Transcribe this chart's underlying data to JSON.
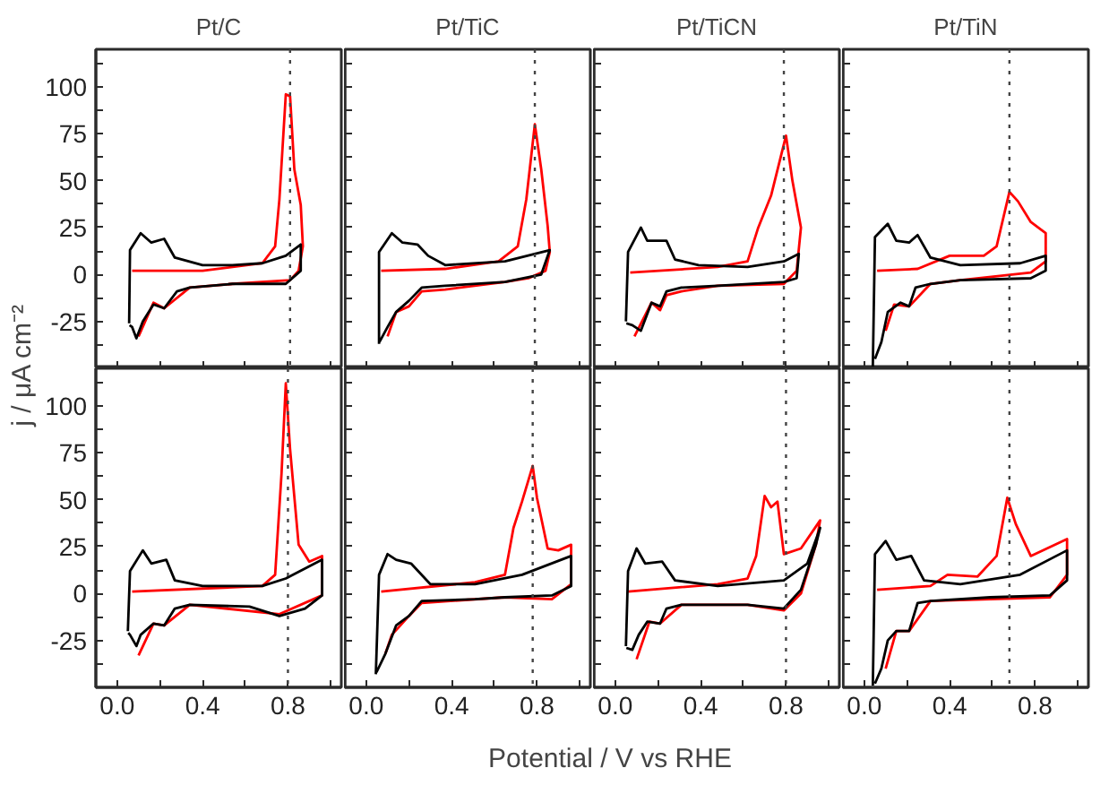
{
  "chart_data": [
    {
      "type": "line",
      "title": "Pt/C",
      "ylabel": "j / μA cm⁻²",
      "tick_labels": "y",
      "xlim": [
        -0.1,
        1.05
      ],
      "ylim": [
        -50,
        120
      ],
      "xticks": [
        {
          "value": 0,
          "label": null
        },
        {
          "value": 0.2,
          "label": null
        },
        {
          "value": 0.4,
          "label": null
        },
        {
          "value": 0.6,
          "label": null
        },
        {
          "value": 0.8,
          "label": null
        },
        {
          "value": 1.0,
          "label": null
        }
      ],
      "yticks": [
        {
          "value": -37.5,
          "label": null
        },
        -25,
        {
          "value": -12.5,
          "label": null
        },
        0,
        {
          "value": 12.5,
          "label": null
        },
        25,
        {
          "value": 37.5,
          "label": null
        },
        50,
        {
          "value": 62.5,
          "label": null
        },
        75,
        {
          "value": 87.5,
          "label": null
        },
        100,
        {
          "value": 112.5,
          "label": null
        }
      ],
      "ref_lines": [
        {
          "axis": "x",
          "value": 0.81,
          "line_style": "dotted",
          "color": "#444444"
        }
      ],
      "series": [
        {
          "color": "#ff0000",
          "x": [
            0.07,
            0.4,
            0.68,
            0.74,
            0.76,
            0.79,
            0.81,
            0.83,
            0.86,
            0.87,
            0.85,
            0.81,
            0.54,
            0.34,
            0.22,
            0.17,
            0.1
          ],
          "values": [
            2,
            2,
            6,
            15,
            40,
            96,
            95,
            56,
            37,
            15,
            2,
            -3,
            -5,
            -7,
            -18,
            -15,
            -33
          ]
        },
        {
          "color": "#000000",
          "x": [
            0.056,
            0.06,
            0.11,
            0.16,
            0.22,
            0.27,
            0.4,
            0.54,
            0.68,
            0.79,
            0.86,
            0.86,
            0.79,
            0.54,
            0.34,
            0.28,
            0.22,
            0.17,
            0.12,
            0.09,
            0.07,
            0.058
          ],
          "values": [
            -26,
            13,
            22,
            17,
            19,
            9,
            5,
            5,
            6,
            10,
            16,
            2,
            -5,
            -5,
            -7,
            -9,
            -18,
            -16,
            -25,
            -34,
            -28,
            -27
          ]
        }
      ]
    },
    {
      "type": "line",
      "title": "Pt/TiC",
      "tick_labels": false,
      "xlim": [
        -0.1,
        1.05
      ],
      "ylim": [
        -50,
        120
      ],
      "xticks": [
        {
          "value": 0,
          "label": null
        },
        {
          "value": 0.2,
          "label": null
        },
        {
          "value": 0.4,
          "label": null
        },
        {
          "value": 0.6,
          "label": null
        },
        {
          "value": 0.8,
          "label": null
        },
        {
          "value": 1.0,
          "label": null
        }
      ],
      "yticks": [
        {
          "value": -37.5,
          "label": null
        },
        {
          "value": -25,
          "label": null
        },
        {
          "value": -12.5,
          "label": null
        },
        {
          "value": 0,
          "label": null
        },
        {
          "value": 12.5,
          "label": null
        },
        {
          "value": 25,
          "label": null
        },
        {
          "value": 37.5,
          "label": null
        },
        {
          "value": 50,
          "label": null
        },
        {
          "value": 62.5,
          "label": null
        },
        {
          "value": 75,
          "label": null
        },
        {
          "value": 87.5,
          "label": null
        },
        {
          "value": 100,
          "label": null
        },
        {
          "value": 112.5,
          "label": null
        }
      ],
      "ref_lines": [
        {
          "axis": "x",
          "value": 0.79,
          "line_style": "dotted",
          "color": "#444444"
        }
      ],
      "series": [
        {
          "color": "#ff0000",
          "x": [
            0.07,
            0.37,
            0.62,
            0.71,
            0.75,
            0.79,
            0.82,
            0.85,
            0.86,
            0.84,
            0.76,
            0.65,
            0.37,
            0.26,
            0.2,
            0.14,
            0.1
          ],
          "values": [
            2,
            3,
            7,
            15,
            40,
            80,
            56,
            26,
            12,
            2,
            -2,
            -4,
            -8,
            -9,
            -17,
            -20,
            -33
          ]
        },
        {
          "color": "#000000",
          "x": [
            0.06,
            0.06,
            0.12,
            0.17,
            0.24,
            0.29,
            0.37,
            0.65,
            0.86,
            0.82,
            0.65,
            0.37,
            0.26,
            0.2,
            0.14,
            0.1,
            0.062
          ],
          "values": [
            -37,
            12,
            22,
            17,
            16,
            10,
            5,
            7,
            13,
            0,
            -4,
            -6,
            -7,
            -14,
            -20,
            -28,
            -36
          ]
        }
      ]
    },
    {
      "type": "line",
      "title": "Pt/TiCN",
      "tick_labels": false,
      "xlim": [
        -0.1,
        1.05
      ],
      "ylim": [
        -50,
        120
      ],
      "xticks": [
        {
          "value": 0,
          "label": null
        },
        {
          "value": 0.2,
          "label": null
        },
        {
          "value": 0.4,
          "label": null
        },
        {
          "value": 0.6,
          "label": null
        },
        {
          "value": 0.8,
          "label": null
        },
        {
          "value": 1.0,
          "label": null
        }
      ],
      "yticks": [
        {
          "value": -37.5,
          "label": null
        },
        {
          "value": -25,
          "label": null
        },
        {
          "value": -12.5,
          "label": null
        },
        {
          "value": 0,
          "label": null
        },
        {
          "value": 12.5,
          "label": null
        },
        {
          "value": 25,
          "label": null
        },
        {
          "value": 37.5,
          "label": null
        },
        {
          "value": 50,
          "label": null
        },
        {
          "value": 62.5,
          "label": null
        },
        {
          "value": 75,
          "label": null
        },
        {
          "value": 87.5,
          "label": null
        },
        {
          "value": 100,
          "label": null
        },
        {
          "value": 112.5,
          "label": null
        }
      ],
      "ref_lines": [
        {
          "axis": "x",
          "value": 0.79,
          "line_style": "dotted",
          "color": "#444444"
        }
      ],
      "series": [
        {
          "color": "#ff0000",
          "x": [
            0.07,
            0.48,
            0.62,
            0.67,
            0.73,
            0.8,
            0.83,
            0.87,
            0.85,
            0.79,
            0.48,
            0.31,
            0.24,
            0.21,
            0.17,
            0.09
          ],
          "values": [
            1,
            4,
            7,
            25,
            42,
            74,
            50,
            25,
            2,
            -5,
            -6,
            -9,
            -11,
            -19,
            -15,
            -33
          ]
        },
        {
          "color": "#000000",
          "x": [
            0.05,
            0.06,
            0.12,
            0.15,
            0.24,
            0.28,
            0.39,
            0.62,
            0.79,
            0.86,
            0.85,
            0.79,
            0.48,
            0.31,
            0.24,
            0.21,
            0.17,
            0.12,
            0.08,
            0.052
          ],
          "values": [
            -25,
            12,
            25,
            18,
            18,
            8,
            5,
            4,
            7,
            11,
            -2,
            -4,
            -6,
            -7,
            -9,
            -17,
            -15,
            -30,
            -27,
            -26
          ]
        }
      ]
    },
    {
      "type": "line",
      "title": "Pt/TiN",
      "tick_labels": false,
      "xlim": [
        -0.1,
        1.05
      ],
      "ylim": [
        -50,
        120
      ],
      "xticks": [
        {
          "value": 0,
          "label": null
        },
        {
          "value": 0.2,
          "label": null
        },
        {
          "value": 0.4,
          "label": null
        },
        {
          "value": 0.6,
          "label": null
        },
        {
          "value": 0.8,
          "label": null
        },
        {
          "value": 1.0,
          "label": null
        }
      ],
      "yticks": [
        {
          "value": -37.5,
          "label": null
        },
        {
          "value": -25,
          "label": null
        },
        {
          "value": -12.5,
          "label": null
        },
        {
          "value": 0,
          "label": null
        },
        {
          "value": 12.5,
          "label": null
        },
        {
          "value": 25,
          "label": null
        },
        {
          "value": 37.5,
          "label": null
        },
        {
          "value": 50,
          "label": null
        },
        {
          "value": 62.5,
          "label": null
        },
        {
          "value": 75,
          "label": null
        },
        {
          "value": 87.5,
          "label": null
        },
        {
          "value": 100,
          "label": null
        },
        {
          "value": 112.5,
          "label": null
        }
      ],
      "ref_lines": [
        {
          "axis": "x",
          "value": 0.68,
          "line_style": "dotted",
          "color": "#444444"
        }
      ],
      "series": [
        {
          "color": "#ff0000",
          "x": [
            0.06,
            0.25,
            0.4,
            0.56,
            0.62,
            0.68,
            0.72,
            0.78,
            0.85,
            0.85,
            0.78,
            0.45,
            0.31,
            0.21,
            0.14,
            0.1
          ],
          "values": [
            2,
            3,
            10,
            10,
            15,
            44,
            39,
            28,
            22,
            7,
            1,
            -3,
            -5,
            -17,
            -16,
            -30
          ]
        },
        {
          "color": "#000000",
          "x": [
            0.04,
            0.05,
            0.11,
            0.15,
            0.21,
            0.25,
            0.31,
            0.45,
            0.73,
            0.85,
            0.85,
            0.78,
            0.45,
            0.31,
            0.24,
            0.21,
            0.17,
            0.11,
            0.08,
            0.05
          ],
          "values": [
            -49,
            20,
            27,
            18,
            17,
            21,
            9,
            5,
            6,
            10,
            2,
            -2,
            -3,
            -5,
            -7,
            -17,
            -15,
            -20,
            -36,
            -45
          ]
        }
      ]
    },
    {
      "type": "line",
      "xlabel": "Potential / V vs RHE",
      "xlim": [
        -0.1,
        1.05
      ],
      "ylim": [
        -50,
        120
      ],
      "xticks": [
        {
          "value": 0,
          "label": "0.0"
        },
        {
          "value": 0.2,
          "label": null
        },
        {
          "value": 0.4,
          "label": "0.4"
        },
        {
          "value": 0.6,
          "label": null
        },
        {
          "value": 0.8,
          "label": "0.8"
        },
        {
          "value": 1.0,
          "label": null
        }
      ],
      "yticks": [
        {
          "value": -37.5,
          "label": null
        },
        -25,
        {
          "value": -12.5,
          "label": null
        },
        0,
        {
          "value": 12.5,
          "label": null
        },
        25,
        {
          "value": 37.5,
          "label": null
        },
        50,
        {
          "value": 62.5,
          "label": null
        },
        75,
        {
          "value": 87.5,
          "label": null
        },
        100,
        {
          "value": 112.5,
          "label": null
        }
      ],
      "ref_lines": [
        {
          "axis": "x",
          "value": 0.8,
          "line_style": "dotted",
          "color": "#444444"
        }
      ],
      "series": [
        {
          "color": "#ff0000",
          "x": [
            0.07,
            0.68,
            0.74,
            0.77,
            0.79,
            0.81,
            0.85,
            0.9,
            0.96,
            0.96,
            0.76,
            0.34,
            0.22,
            0.17,
            0.1
          ],
          "values": [
            1,
            4,
            10,
            64,
            112,
            77,
            26,
            17,
            20,
            -1,
            -11,
            -6,
            -17,
            -16,
            -33
          ]
        },
        {
          "color": "#000000",
          "x": [
            0.05,
            0.06,
            0.12,
            0.16,
            0.23,
            0.27,
            0.4,
            0.68,
            0.79,
            0.96,
            0.96,
            0.88,
            0.76,
            0.62,
            0.34,
            0.27,
            0.22,
            0.17,
            0.11,
            0.09,
            0.06,
            0.052
          ],
          "values": [
            -20,
            12,
            23,
            16,
            18,
            7,
            4,
            4,
            8,
            18,
            -1,
            -8,
            -12,
            -7,
            -6,
            -8,
            -17,
            -16,
            -22,
            -28,
            -22,
            -21
          ]
        }
      ]
    },
    {
      "type": "line",
      "tick_labels": "x",
      "xlim": [
        -0.1,
        1.05
      ],
      "ylim": [
        -50,
        120
      ],
      "xticks": [
        {
          "value": 0,
          "label": "0.0"
        },
        {
          "value": 0.2,
          "label": null
        },
        {
          "value": 0.4,
          "label": "0.4"
        },
        {
          "value": 0.6,
          "label": null
        },
        {
          "value": 0.8,
          "label": "0.8"
        },
        {
          "value": 1.0,
          "label": null
        }
      ],
      "yticks": [
        {
          "value": -37.5,
          "label": null
        },
        {
          "value": -25,
          "label": null
        },
        {
          "value": -12.5,
          "label": null
        },
        {
          "value": 0,
          "label": null
        },
        {
          "value": 12.5,
          "label": null
        },
        {
          "value": 25,
          "label": null
        },
        {
          "value": 37.5,
          "label": null
        },
        {
          "value": 50,
          "label": null
        },
        {
          "value": 62.5,
          "label": null
        },
        {
          "value": 75,
          "label": null
        },
        {
          "value": 87.5,
          "label": null
        },
        {
          "value": 100,
          "label": null
        },
        {
          "value": 112.5,
          "label": null
        }
      ],
      "ref_lines": [
        {
          "axis": "x",
          "value": 0.78,
          "line_style": "dotted",
          "color": "#444444"
        }
      ],
      "series": [
        {
          "color": "#ff0000",
          "x": [
            0.07,
            0.51,
            0.65,
            0.69,
            0.73,
            0.78,
            0.8,
            0.85,
            0.9,
            0.96,
            0.96,
            0.87,
            0.65,
            0.26,
            0.2,
            0.12,
            0.09
          ],
          "values": [
            1,
            6,
            10,
            35,
            49,
            68,
            51,
            24,
            23,
            26,
            5,
            -3,
            -2,
            -5,
            -12,
            -22,
            -32
          ]
        },
        {
          "color": "#000000",
          "x": [
            0.045,
            0.06,
            0.1,
            0.14,
            0.21,
            0.3,
            0.51,
            0.73,
            0.96,
            0.96,
            0.87,
            0.65,
            0.51,
            0.26,
            0.2,
            0.14,
            0.09,
            0.048
          ],
          "values": [
            -43,
            10,
            21,
            18,
            16,
            5,
            5,
            10,
            20,
            4,
            -1,
            -2,
            -3,
            -4,
            -12,
            -17,
            -32,
            -42
          ]
        }
      ]
    },
    {
      "type": "line",
      "tick_labels": "x",
      "xlim": [
        -0.1,
        1.05
      ],
      "ylim": [
        -50,
        120
      ],
      "xticks": [
        {
          "value": 0,
          "label": "0.0"
        },
        {
          "value": 0.2,
          "label": null
        },
        {
          "value": 0.4,
          "label": "0.4"
        },
        {
          "value": 0.6,
          "label": null
        },
        {
          "value": 0.8,
          "label": "0.8"
        },
        {
          "value": 1.0,
          "label": null
        }
      ],
      "yticks": [
        {
          "value": -37.5,
          "label": null
        },
        {
          "value": -25,
          "label": null
        },
        {
          "value": -12.5,
          "label": null
        },
        {
          "value": 0,
          "label": null
        },
        {
          "value": 12.5,
          "label": null
        },
        {
          "value": 25,
          "label": null
        },
        {
          "value": 37.5,
          "label": null
        },
        {
          "value": 50,
          "label": null
        },
        {
          "value": 62.5,
          "label": null
        },
        {
          "value": 75,
          "label": null
        },
        {
          "value": 87.5,
          "label": null
        },
        {
          "value": 100,
          "label": null
        },
        {
          "value": 112.5,
          "label": null
        }
      ],
      "ref_lines": [
        {
          "axis": "x",
          "value": 0.8,
          "line_style": "dotted",
          "color": "#444444"
        }
      ],
      "series": [
        {
          "color": "#ff0000",
          "x": [
            0.06,
            0.48,
            0.62,
            0.66,
            0.7,
            0.73,
            0.76,
            0.79,
            0.87,
            0.96,
            0.94,
            0.87,
            0.79,
            0.62,
            0.31,
            0.21,
            0.16,
            0.1
          ],
          "values": [
            1,
            5,
            8,
            20,
            52,
            46,
            49,
            21,
            24,
            39,
            26,
            0,
            -9,
            -6,
            -6,
            -16,
            -15,
            -35
          ]
        },
        {
          "color": "#000000",
          "x": [
            0.05,
            0.06,
            0.1,
            0.14,
            0.22,
            0.28,
            0.48,
            0.79,
            0.9,
            0.96,
            0.94,
            0.87,
            0.79,
            0.62,
            0.31,
            0.24,
            0.21,
            0.15,
            0.11,
            0.08,
            0.052
          ],
          "values": [
            -28,
            12,
            24,
            16,
            17,
            7,
            4,
            7,
            16,
            35,
            26,
            2,
            -8,
            -6,
            -6,
            -8,
            -16,
            -15,
            -22,
            -30,
            -29
          ]
        }
      ]
    },
    {
      "type": "line",
      "tick_labels": "x",
      "xlim": [
        -0.1,
        1.05
      ],
      "ylim": [
        -50,
        120
      ],
      "xticks": [
        {
          "value": 0,
          "label": "0.0"
        },
        {
          "value": 0.2,
          "label": null
        },
        {
          "value": 0.4,
          "label": "0.4"
        },
        {
          "value": 0.6,
          "label": null
        },
        {
          "value": 0.8,
          "label": "0.8"
        },
        {
          "value": 1.0,
          "label": null
        }
      ],
      "yticks": [
        {
          "value": -37.5,
          "label": null
        },
        {
          "value": -25,
          "label": null
        },
        {
          "value": -12.5,
          "label": null
        },
        {
          "value": 0,
          "label": null
        },
        {
          "value": 12.5,
          "label": null
        },
        {
          "value": 25,
          "label": null
        },
        {
          "value": 37.5,
          "label": null
        },
        {
          "value": 50,
          "label": null
        },
        {
          "value": 62.5,
          "label": null
        },
        {
          "value": 75,
          "label": null
        },
        {
          "value": 87.5,
          "label": null
        },
        {
          "value": 100,
          "label": null
        },
        {
          "value": 112.5,
          "label": null
        }
      ],
      "ref_lines": [
        {
          "axis": "x",
          "value": 0.68,
          "line_style": "dotted",
          "color": "#444444"
        }
      ],
      "series": [
        {
          "color": "#ff0000",
          "x": [
            0.06,
            0.31,
            0.39,
            0.53,
            0.62,
            0.67,
            0.71,
            0.78,
            0.95,
            0.95,
            0.87,
            0.31,
            0.21,
            0.15,
            0.1
          ],
          "values": [
            2,
            4,
            10,
            9,
            20,
            51,
            37,
            20,
            29,
            10,
            -2,
            -4,
            -20,
            -20,
            -40
          ]
        },
        {
          "color": "#000000",
          "x": [
            0.04,
            0.05,
            0.1,
            0.15,
            0.22,
            0.28,
            0.45,
            0.73,
            0.95,
            0.95,
            0.87,
            0.59,
            0.31,
            0.25,
            0.21,
            0.15,
            0.11,
            0.08,
            0.05
          ],
          "values": [
            -49,
            21,
            28,
            18,
            20,
            7,
            5,
            10,
            23,
            7,
            -1,
            -2,
            -4,
            -5,
            -20,
            -20,
            -25,
            -40,
            -48
          ]
        }
      ]
    }
  ]
}
